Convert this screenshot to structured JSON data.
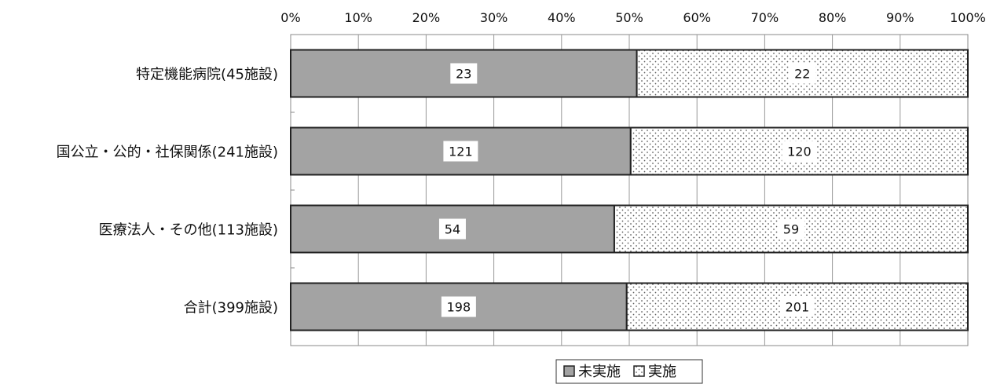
{
  "chart_data": {
    "type": "bar",
    "orientation": "horizontal",
    "stacked": "percent",
    "categories": [
      "特定機能病院(45施設)",
      "国公立・公的・社保関係(241施設)",
      "医療法人・その他(113施設)",
      "合計(399施設)"
    ],
    "series": [
      {
        "name": "未実施",
        "values": [
          23,
          121,
          54,
          198
        ],
        "color": "#a3a3a3",
        "pattern": "solid"
      },
      {
        "name": "実施",
        "values": [
          22,
          120,
          59,
          201
        ],
        "color": "#ffffff",
        "pattern": "dots"
      }
    ],
    "x_ticks": [
      "0%",
      "10%",
      "20%",
      "30%",
      "40%",
      "50%",
      "60%",
      "70%",
      "80%",
      "90%",
      "100%"
    ],
    "xlim": [
      0,
      100
    ],
    "grid": true,
    "legend_position": "bottom-center",
    "data_labels": true
  }
}
